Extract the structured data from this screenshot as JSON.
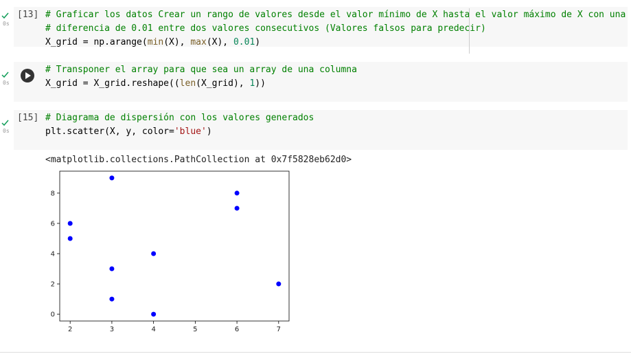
{
  "cells": [
    {
      "exec_count": "[13]",
      "time": "0s",
      "lines": [
        [
          {
            "text": "# Graficar los datos Crear un rango de valores desde el valor mínimo de X hasta el valor máximo de X con una",
            "color": "#008000"
          }
        ],
        [
          {
            "text": "# diferencia de 0.01 entre dos valores consecutivos (Valores falsos para predecir)",
            "color": "#008000"
          }
        ],
        [
          {
            "text": "X_grid = np.arange(",
            "color": "#000000"
          },
          {
            "text": "min",
            "color": "#795e26"
          },
          {
            "text": "(X), ",
            "color": "#000000"
          },
          {
            "text": "max",
            "color": "#795e26"
          },
          {
            "text": "(X), ",
            "color": "#000000"
          },
          {
            "text": "0.01",
            "color": "#098658"
          },
          {
            "text": ")",
            "color": "#000000"
          }
        ]
      ]
    },
    {
      "time": "0s",
      "lines": [
        [
          {
            "text": "# Transponer el array para que sea un array de una columna",
            "color": "#008000"
          }
        ],
        [
          {
            "text": "X_grid = X_grid.reshape((",
            "color": "#000000"
          },
          {
            "text": "len",
            "color": "#795e26"
          },
          {
            "text": "(X_grid), ",
            "color": "#000000"
          },
          {
            "text": "1",
            "color": "#098658"
          },
          {
            "text": "))",
            "color": "#000000"
          }
        ]
      ]
    },
    {
      "exec_count": "[15]",
      "time": "0s",
      "lines": [
        [
          {
            "text": "# Diagrama de dispersión con los valores generados",
            "color": "#008000"
          }
        ],
        [
          {
            "text": "plt.scatter(X, y, color=",
            "color": "#000000"
          },
          {
            "text": "'blue'",
            "color": "#a31515"
          },
          {
            "text": ")",
            "color": "#000000"
          }
        ]
      ]
    }
  ],
  "output": {
    "text": "<matplotlib.collections.PathCollection at 0x7f5828eb62d0>"
  },
  "chart_data": {
    "type": "scatter",
    "x": [
      2,
      2,
      3,
      3,
      3,
      4,
      4,
      6,
      6,
      7
    ],
    "y": [
      6,
      5,
      9,
      3,
      1,
      4,
      0,
      8,
      7,
      2
    ],
    "color": "#0000ff",
    "xlim": [
      1.75,
      7.25
    ],
    "ylim": [
      -0.45,
      9.45
    ],
    "xticks": [
      2,
      3,
      4,
      5,
      6,
      7
    ],
    "yticks": [
      0,
      2,
      4,
      6,
      8
    ]
  }
}
